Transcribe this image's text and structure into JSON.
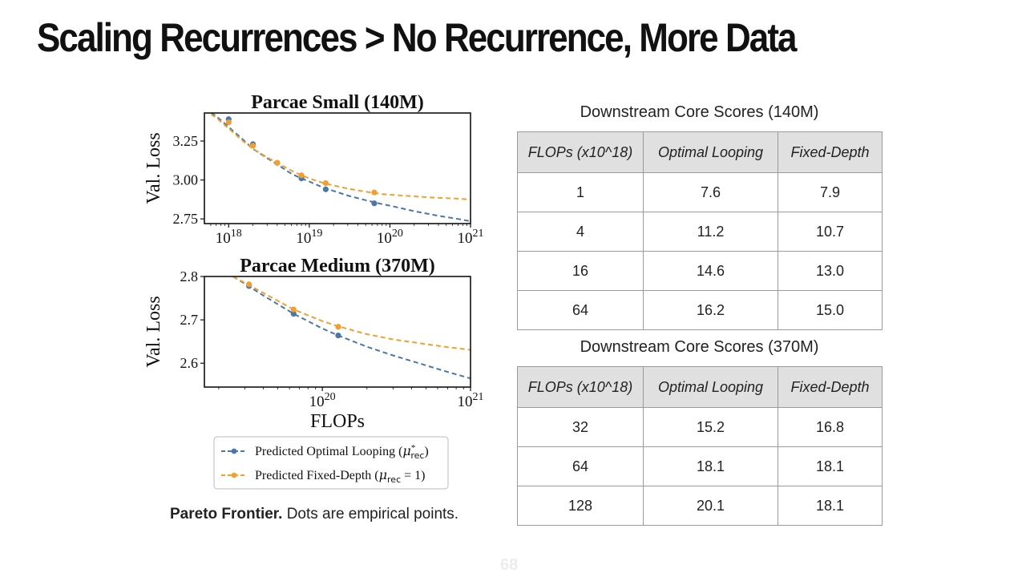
{
  "slide": {
    "title": "Scaling Recurrences > No Recurrence, More Data",
    "caption_lead": "Pareto Frontier.",
    "caption_rest": " Dots are empirical points.",
    "page_number": "68"
  },
  "colors": {
    "optimal": "#4a76a8",
    "fixed": "#f0a030"
  },
  "chart_data": [
    {
      "type": "line",
      "title": "Parcae Small (140M)",
      "xlabel": "",
      "ylabel": "Val. Loss",
      "xscale": "log",
      "xlim": [
        5e+17,
        1e+21
      ],
      "ylim": [
        2.72,
        3.43
      ],
      "xticks": [
        1e+18,
        1e+19,
        1e+20,
        1e+21
      ],
      "xtick_labels": [
        {
          "base": "10",
          "exp": "18"
        },
        {
          "base": "10",
          "exp": "19"
        },
        {
          "base": "10",
          "exp": "20"
        },
        {
          "base": "10",
          "exp": "21"
        }
      ],
      "yticks": [
        2.75,
        3.0,
        3.25
      ],
      "ytick_labels": [
        "2.75",
        "3.00",
        "3.25"
      ],
      "grid": false,
      "series": [
        {
          "key": "optimal",
          "curve": {
            "x": [
              5e+17,
              7e+17,
              1e+18,
              1.5e+18,
              2e+18,
              3e+18,
              4e+18,
              6e+18,
              8e+18,
              1e+19,
              1.5e+19,
              2e+19,
              3e+19,
              5e+19,
              8e+19,
              1e+20,
              2e+20,
              4e+20,
              7e+20,
              1e+21
            ],
            "y": [
              3.46,
              3.41,
              3.34,
              3.26,
              3.2,
              3.14,
              3.1,
              3.04,
              3.01,
              2.99,
              2.95,
              2.93,
              2.9,
              2.87,
              2.845,
              2.835,
              2.8,
              2.77,
              2.75,
              2.735
            ]
          },
          "points": {
            "x": [
              1e+18,
              2e+18,
              4e+18,
              8e+18,
              1.6e+19,
              6.4e+19
            ],
            "y": [
              3.39,
              3.23,
              3.11,
              3.01,
              2.94,
              2.85
            ]
          }
        },
        {
          "key": "fixed",
          "curve": {
            "x": [
              5e+17,
              7e+17,
              1e+18,
              1.5e+18,
              2e+18,
              3e+18,
              4e+18,
              6e+18,
              8e+18,
              1e+19,
              1.5e+19,
              2e+19,
              3e+19,
              5e+19,
              8e+19,
              1e+20,
              2e+20,
              4e+20,
              7e+20,
              1e+21
            ],
            "y": [
              3.45,
              3.4,
              3.33,
              3.25,
              3.2,
              3.145,
              3.11,
              3.06,
              3.03,
              3.01,
              2.98,
              2.965,
              2.945,
              2.925,
              2.91,
              2.905,
              2.895,
              2.885,
              2.88,
              2.875
            ]
          },
          "points": {
            "x": [
              1e+18,
              2e+18,
              4e+18,
              8e+18,
              1.6e+19,
              6.4e+19
            ],
            "y": [
              3.37,
              3.22,
              3.11,
              3.03,
              2.98,
              2.92
            ]
          }
        }
      ]
    },
    {
      "type": "line",
      "title": "Parcae Medium (370M)",
      "xlabel": "FLOPs",
      "ylabel": "Val. Loss",
      "xscale": "log",
      "xlim": [
        1.6e+19,
        1e+21
      ],
      "ylim": [
        2.545,
        2.8
      ],
      "xticks": [
        1e+20,
        1e+21
      ],
      "xtick_labels": [
        {
          "base": "10",
          "exp": "20"
        },
        {
          "base": "10",
          "exp": "21"
        }
      ],
      "yticks": [
        2.6,
        2.7,
        2.8
      ],
      "ytick_labels": [
        "2.6",
        "2.7",
        "2.8"
      ],
      "grid": false,
      "series": [
        {
          "key": "optimal",
          "curve": {
            "x": [
              2.5e+19,
              3.2e+19,
              4e+19,
              6.4e+19,
              1e+20,
              1.28e+20,
              2e+20,
              3e+20,
              5e+20,
              7e+20,
              1e+21
            ],
            "y": [
              2.8,
              2.777,
              2.756,
              2.714,
              2.68,
              2.664,
              2.638,
              2.618,
              2.595,
              2.58,
              2.565
            ]
          },
          "points": {
            "x": [
              3.2e+19,
              6.4e+19,
              1.28e+20
            ],
            "y": [
              2.778,
              2.714,
              2.664
            ]
          }
        },
        {
          "key": "fixed",
          "curve": {
            "x": [
              2.5e+19,
              3.2e+19,
              4e+19,
              6.4e+19,
              1e+20,
              1.28e+20,
              2e+20,
              3e+20,
              5e+20,
              7e+20,
              1e+21
            ],
            "y": [
              2.8,
              2.78,
              2.762,
              2.724,
              2.697,
              2.685,
              2.667,
              2.655,
              2.644,
              2.637,
              2.631
            ]
          },
          "points": {
            "x": [
              3.2e+19,
              6.4e+19,
              1.28e+20
            ],
            "y": [
              2.782,
              2.724,
              2.684
            ]
          }
        }
      ]
    }
  ],
  "legend": {
    "placement": "below",
    "entries": [
      {
        "key": "optimal",
        "label": "Predicted Optimal Looping (",
        "math": "μ",
        "sup": "*",
        "sub": "rec",
        "tail": ")"
      },
      {
        "key": "fixed",
        "label": "Predicted Fixed-Depth (",
        "math": "μ",
        "sub": "rec",
        "eq": " = 1",
        "tail": ")"
      }
    ]
  },
  "tables": [
    {
      "title": "Downstream Core Scores (140M)",
      "headers": [
        "FLOPs (x10^18)",
        "Optimal Looping",
        "Fixed-Depth"
      ],
      "rows": [
        [
          "1",
          "7.6",
          "7.9"
        ],
        [
          "4",
          "11.2",
          "10.7"
        ],
        [
          "16",
          "14.6",
          "13.0"
        ],
        [
          "64",
          "16.2",
          "15.0"
        ]
      ]
    },
    {
      "title": "Downstream Core Scores (370M)",
      "headers": [
        "FLOPs (x10^18)",
        "Optimal Looping",
        "Fixed-Depth"
      ],
      "rows": [
        [
          "32",
          "15.2",
          "16.8"
        ],
        [
          "64",
          "18.1",
          "18.1"
        ],
        [
          "128",
          "20.1",
          "18.1"
        ]
      ]
    }
  ]
}
